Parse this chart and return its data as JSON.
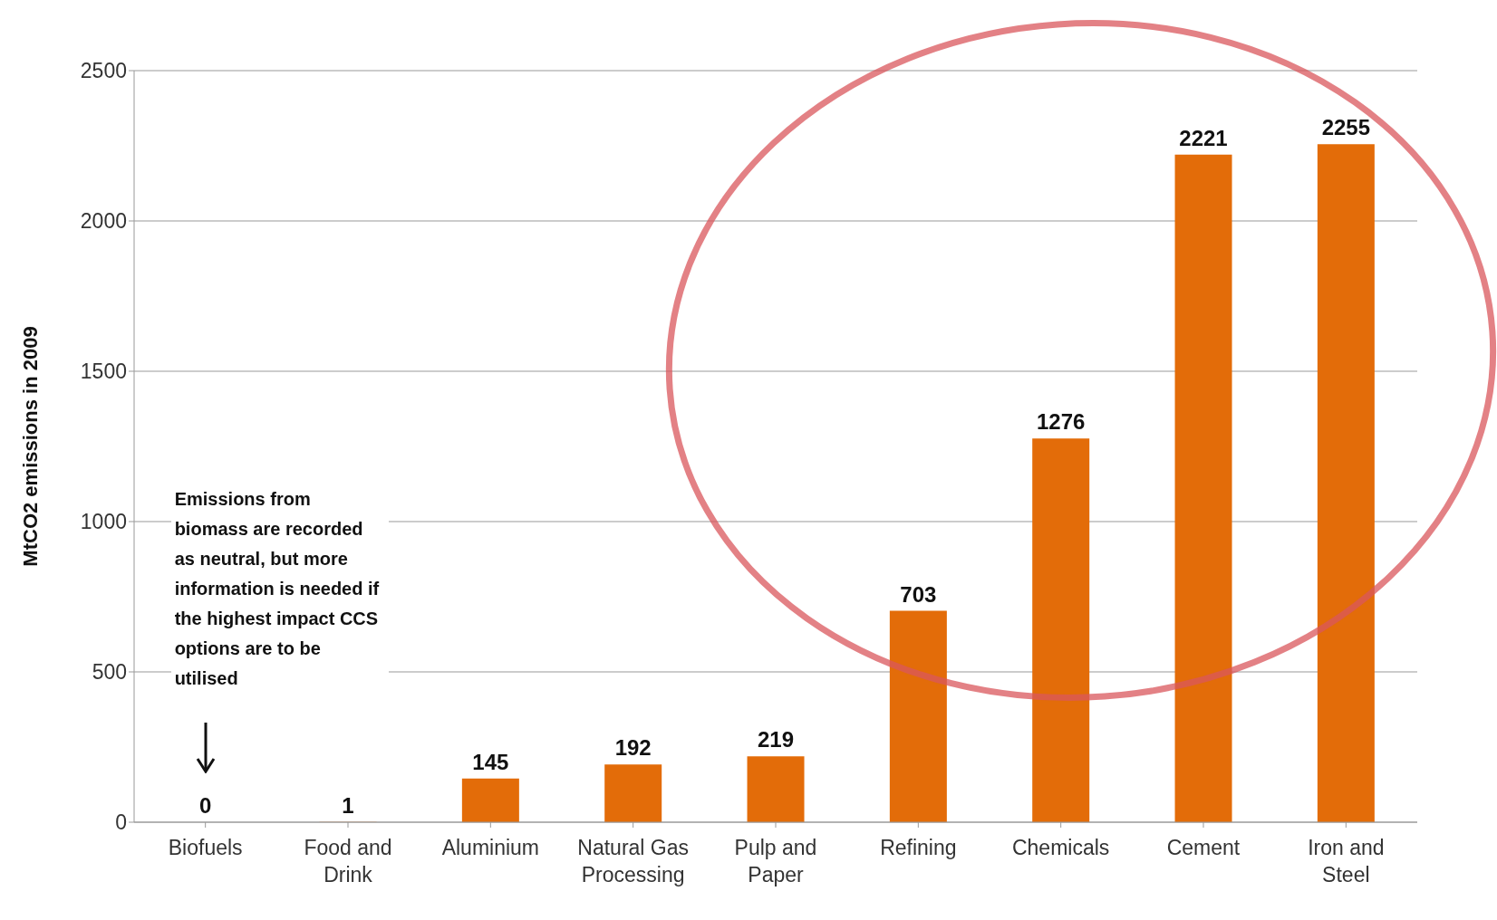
{
  "chart_data": {
    "type": "bar",
    "ylabel": "MtCO2 emissions in 2009",
    "categories": [
      "Biofuels",
      "Food and Drink",
      "Aluminium",
      "Natural Gas Processing",
      "Pulp and Paper",
      "Refining",
      "Chemicals",
      "Cement",
      "Iron and Steel"
    ],
    "values": [
      0,
      1,
      145,
      192,
      219,
      703,
      1276,
      2221,
      2255
    ],
    "color": "#e36c09",
    "ylim": [
      0,
      2500
    ],
    "yticks": [
      0,
      500,
      1000,
      1500,
      2000,
      2500
    ],
    "grid": "y",
    "data_labels": true,
    "legend": false,
    "annotations": [
      "Emissions from biomass are recorded as neutral, but more information is needed if the highest impact CCS options are to be utilised"
    ]
  }
}
